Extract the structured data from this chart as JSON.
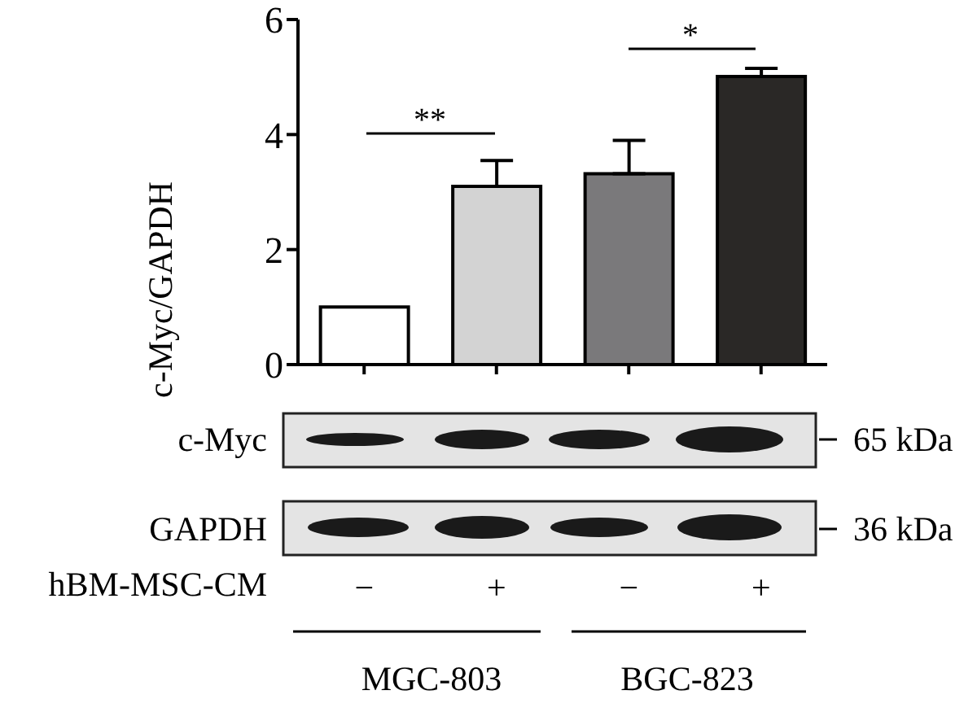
{
  "chart_data": {
    "type": "bar",
    "ylabel": "c-Myc/GAPDH",
    "xlabel": "hBM-MSC-CM",
    "categories": [
      "−",
      "+",
      "−",
      "+"
    ],
    "values": [
      1.0,
      3.1,
      3.32,
      5.01
    ],
    "colors": [
      "#ffffff",
      "#d3d3d3",
      "#7a797b",
      "#2a2826"
    ],
    "errors": [
      null,
      [
        3.1,
        3.55
      ],
      [
        3.32,
        3.9
      ],
      [
        5.01,
        5.15
      ]
    ],
    "ylim": [
      0,
      6
    ],
    "yticks": [
      0,
      2,
      4,
      6
    ],
    "grid": false,
    "legend": false,
    "annotations": [
      "**",
      "*",
      "c-Myc",
      "GAPDH",
      "65 kDa",
      "36 kDa",
      "MGC-803",
      "BGC-823"
    ]
  }
}
